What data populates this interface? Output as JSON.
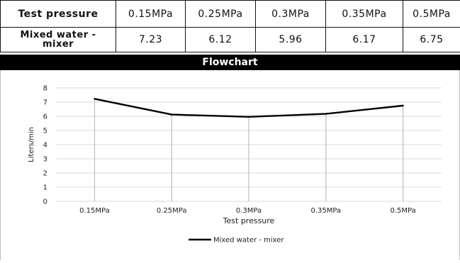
{
  "table": {
    "header_label": "Test pressure",
    "columns": [
      "0.15MPa",
      "0.25MPa",
      "0.3MPa",
      "0.35MPa",
      "0.5MPa"
    ],
    "row_label": "Mixed water -\nmixer",
    "row_values": [
      "7.23",
      "6.12",
      "5.96",
      "6.17",
      "6.75"
    ]
  },
  "section_title": "Flowchart",
  "chart_data": {
    "type": "line",
    "categories": [
      "0.15MPa",
      "0.25MPa",
      "0.3MPa",
      "0.35MPa",
      "0.5MPa"
    ],
    "series": [
      {
        "name": "Mixed water - mixer",
        "values": [
          7.23,
          6.12,
          5.96,
          6.17,
          6.75
        ]
      }
    ],
    "xlabel": "Test pressure",
    "ylabel": "Liters/min",
    "ylim": [
      0,
      8
    ],
    "yticks": [
      0,
      1,
      2,
      3,
      4,
      5,
      6,
      7,
      8
    ],
    "grid": true,
    "legend": "bottom",
    "line_color": "#000000",
    "drop_line_color": "#bdbdbd"
  }
}
